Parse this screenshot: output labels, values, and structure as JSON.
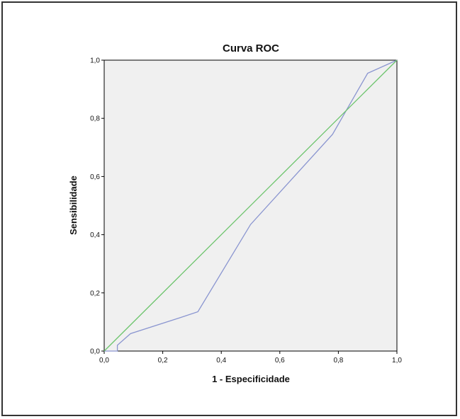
{
  "chart_data": {
    "type": "line",
    "title": "Curva ROC",
    "xlabel": "1 - Especificidade",
    "ylabel": "Sensibilidade",
    "xlim": [
      0,
      1
    ],
    "ylim": [
      0,
      1
    ],
    "xticks": [
      "0,0",
      "0,2",
      "0,4",
      "0,6",
      "0,8",
      "1,0"
    ],
    "yticks": [
      "0,0",
      "0,2",
      "0,4",
      "0,6",
      "0,8",
      "1,0"
    ],
    "grid": false,
    "plot_background": "#f0f0f0",
    "series": [
      {
        "color": "#8a95d0",
        "x": [
          0.0,
          0.045,
          0.045,
          0.09,
          0.26,
          0.32,
          0.5,
          0.78,
          0.9,
          1.0
        ],
        "y": [
          0.0,
          0.0,
          0.02,
          0.06,
          0.115,
          0.135,
          0.435,
          0.745,
          0.955,
          1.0
        ]
      },
      {
        "color": "#6cc46c",
        "x": [
          0.0,
          1.0
        ],
        "y": [
          0.0,
          1.0
        ]
      }
    ]
  }
}
